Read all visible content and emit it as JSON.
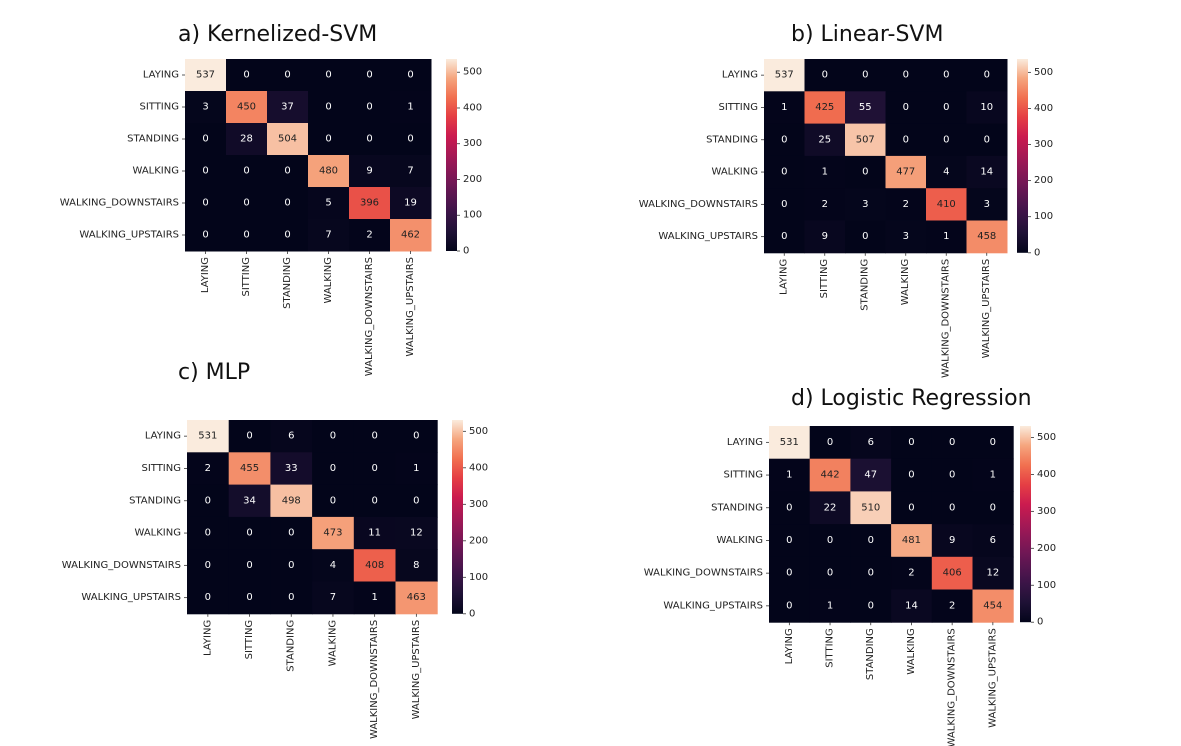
{
  "chart_data": [
    {
      "type": "heatmap",
      "title": "a) Kernelized-SVM",
      "categories": [
        "LAYING",
        "SITTING",
        "STANDING",
        "WALKING",
        "WALKING_DOWNSTAIRS",
        "WALKING_UPSTAIRS"
      ],
      "values": [
        [
          537,
          0,
          0,
          0,
          0,
          0
        ],
        [
          3,
          450,
          37,
          0,
          0,
          1
        ],
        [
          0,
          28,
          504,
          0,
          0,
          0
        ],
        [
          0,
          0,
          0,
          480,
          9,
          7
        ],
        [
          0,
          0,
          0,
          5,
          396,
          19
        ],
        [
          0,
          0,
          0,
          7,
          2,
          462
        ]
      ],
      "colorbar_ticks": [
        0,
        100,
        200,
        300,
        400,
        500
      ],
      "colorbar_range": [
        0,
        537
      ]
    },
    {
      "type": "heatmap",
      "title": "b) Linear-SVM",
      "categories": [
        "LAYING",
        "SITTING",
        "STANDING",
        "WALKING",
        "WALKING_DOWNSTAIRS",
        "WALKING_UPSTAIRS"
      ],
      "values": [
        [
          537,
          0,
          0,
          0,
          0,
          0
        ],
        [
          1,
          425,
          55,
          0,
          0,
          10
        ],
        [
          0,
          25,
          507,
          0,
          0,
          0
        ],
        [
          0,
          1,
          0,
          477,
          4,
          14
        ],
        [
          0,
          2,
          3,
          2,
          410,
          3
        ],
        [
          0,
          9,
          0,
          3,
          1,
          458
        ]
      ],
      "colorbar_ticks": [
        0,
        100,
        200,
        300,
        400,
        500
      ],
      "colorbar_range": [
        0,
        537
      ]
    },
    {
      "type": "heatmap",
      "title": "c) MLP",
      "categories": [
        "LAYING",
        "SITTING",
        "STANDING",
        "WALKING",
        "WALKING_DOWNSTAIRS",
        "WALKING_UPSTAIRS"
      ],
      "values": [
        [
          531,
          0,
          6,
          0,
          0,
          0
        ],
        [
          2,
          455,
          33,
          0,
          0,
          1
        ],
        [
          0,
          34,
          498,
          0,
          0,
          0
        ],
        [
          0,
          0,
          0,
          473,
          11,
          12
        ],
        [
          0,
          0,
          0,
          4,
          408,
          8
        ],
        [
          0,
          0,
          0,
          7,
          1,
          463
        ]
      ],
      "colorbar_ticks": [
        0,
        100,
        200,
        300,
        400,
        500
      ],
      "colorbar_range": [
        0,
        531
      ]
    },
    {
      "type": "heatmap",
      "title": "d) Logistic Regression",
      "categories": [
        "LAYING",
        "SITTING",
        "STANDING",
        "WALKING",
        "WALKING_DOWNSTAIRS",
        "WALKING_UPSTAIRS"
      ],
      "values": [
        [
          531,
          0,
          6,
          0,
          0,
          0
        ],
        [
          1,
          442,
          47,
          0,
          0,
          1
        ],
        [
          0,
          22,
          510,
          0,
          0,
          0
        ],
        [
          0,
          0,
          0,
          481,
          9,
          6
        ],
        [
          0,
          0,
          0,
          2,
          406,
          12
        ],
        [
          0,
          1,
          0,
          14,
          2,
          454
        ]
      ],
      "colorbar_ticks": [
        0,
        100,
        200,
        300,
        400,
        500
      ],
      "colorbar_range": [
        0,
        531
      ]
    }
  ]
}
